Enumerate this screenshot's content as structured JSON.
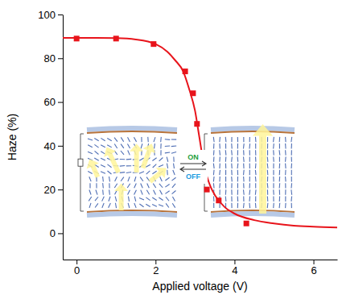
{
  "chart_data": {
    "type": "scatter",
    "x_label": "Applied voltage (V)",
    "y_label": "Haze (%)",
    "xlim": [
      -0.35,
      6.6
    ],
    "xticks": [
      0,
      2,
      4,
      6
    ],
    "ylim": [
      -12,
      100
    ],
    "yticks": [
      0,
      20,
      40,
      60,
      80,
      100
    ],
    "grid": false,
    "annotations": [
      "ON",
      "OFF"
    ],
    "series": [
      {
        "type": "scatter",
        "color": "#e8141b",
        "marker": "square",
        "x": [
          0,
          1,
          1.95,
          2.75,
          2.95,
          3.05,
          3.3,
          3.6,
          4.3
        ],
        "values": [
          89,
          89,
          86.5,
          74,
          64,
          50,
          20,
          15,
          4.5
        ]
      },
      {
        "type": "line",
        "color": "#e8141b",
        "line_style": "solid",
        "x": [
          -0.35,
          0,
          0.5,
          1,
          1.5,
          2,
          2.3,
          2.5,
          2.7,
          2.85,
          3,
          3.1,
          3.2,
          3.3,
          3.4,
          3.5,
          3.75,
          4,
          4.5,
          5,
          5.5,
          6,
          6.6
        ],
        "values": [
          89.3,
          89.3,
          89.3,
          89.2,
          88.6,
          86.5,
          83,
          79,
          74,
          66,
          56,
          45,
          34,
          26,
          21,
          17.5,
          12,
          9,
          6,
          4.5,
          3.5,
          3,
          2.6
        ]
      }
    ]
  }
}
